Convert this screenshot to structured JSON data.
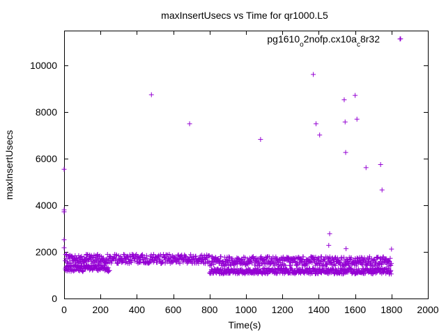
{
  "chart_data": {
    "type": "scatter",
    "title": "maxInsertUsecs vs Time for qr1000.L5",
    "xlabel": "Time(s)",
    "ylabel": "maxInsertUsecs",
    "xlim": [
      0,
      2000
    ],
    "ylim": [
      0,
      11500
    ],
    "xticks": [
      0,
      200,
      400,
      600,
      800,
      1000,
      1200,
      1400,
      1600,
      1800,
      2000
    ],
    "yticks": [
      0,
      2000,
      4000,
      6000,
      8000,
      10000
    ],
    "x_tick_labels": [
      "0",
      "200",
      "400",
      "600",
      "800",
      "1000",
      "1200",
      "1400",
      "1600",
      "1800",
      "2000"
    ],
    "y_tick_labels": [
      "0",
      "2000",
      "4000",
      "6000",
      "8000",
      "10000"
    ],
    "grid": false,
    "legend": {
      "placement": "top-right",
      "label_parts": [
        "pg1610",
        "o",
        "2nofp.cx10a",
        "c",
        "8r32"
      ]
    },
    "series": [
      {
        "name": "pg1610_o2nofp.cx10a_c8r32",
        "color": "#9400d3",
        "marker": "plus",
        "outliers": [
          [
            0,
            5550
          ],
          [
            0,
            3800
          ],
          [
            0,
            3720
          ],
          [
            0,
            2520
          ],
          [
            0,
            2180
          ],
          [
            480,
            8750
          ],
          [
            690,
            7500
          ],
          [
            1080,
            6830
          ],
          [
            1370,
            9620
          ],
          [
            1385,
            7500
          ],
          [
            1405,
            7020
          ],
          [
            1455,
            2280
          ],
          [
            1460,
            2780
          ],
          [
            1540,
            8530
          ],
          [
            1545,
            7580
          ],
          [
            1548,
            6270
          ],
          [
            1550,
            2140
          ],
          [
            1600,
            8720
          ],
          [
            1610,
            7700
          ],
          [
            1660,
            5620
          ],
          [
            1740,
            5750
          ],
          [
            1748,
            4660
          ],
          [
            1850,
            11150
          ],
          [
            1800,
            2120
          ]
        ],
        "bands": [
          {
            "x_from": 5,
            "x_to": 800,
            "main_low": 1500,
            "main_high": 1900
          },
          {
            "x_from": 5,
            "x_to": 250,
            "main_low": 1150,
            "main_high": 1450
          },
          {
            "x_from": 800,
            "x_to": 1800,
            "main_low": 1400,
            "main_high": 1800
          },
          {
            "x_from": 800,
            "x_to": 1800,
            "main_low": 1050,
            "main_high": 1300
          }
        ]
      }
    ]
  }
}
